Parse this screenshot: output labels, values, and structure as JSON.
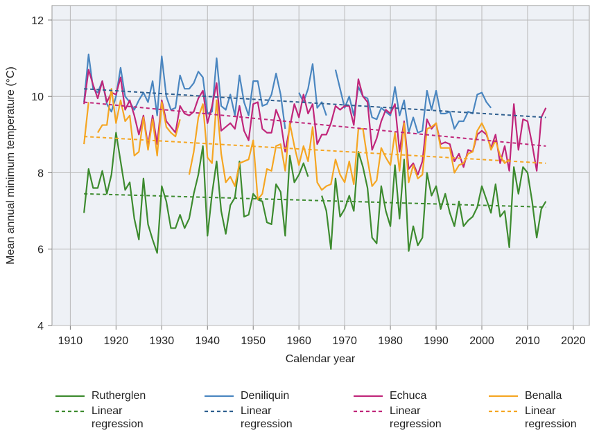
{
  "chart_data": {
    "type": "line",
    "xlabel": "Calendar year",
    "ylabel": "Mean annual minimum temperature (°C)",
    "xlim": [
      1906,
      2023.5
    ],
    "ylim": [
      4,
      12.38
    ],
    "xticks": [
      1910,
      1920,
      1930,
      1940,
      1950,
      1960,
      1970,
      1980,
      1990,
      2000,
      2010,
      2020
    ],
    "yticks": [
      4,
      6,
      8,
      10,
      12
    ],
    "grid": true,
    "x": [
      1913,
      1914,
      1915,
      1916,
      1917,
      1918,
      1919,
      1920,
      1921,
      1922,
      1923,
      1924,
      1925,
      1926,
      1927,
      1928,
      1929,
      1930,
      1931,
      1932,
      1933,
      1934,
      1935,
      1936,
      1937,
      1938,
      1939,
      1940,
      1941,
      1942,
      1943,
      1944,
      1945,
      1946,
      1947,
      1948,
      1949,
      1950,
      1951,
      1952,
      1953,
      1954,
      1955,
      1956,
      1957,
      1958,
      1959,
      1960,
      1961,
      1962,
      1963,
      1964,
      1965,
      1966,
      1967,
      1968,
      1969,
      1970,
      1971,
      1972,
      1973,
      1974,
      1975,
      1976,
      1977,
      1978,
      1979,
      1980,
      1981,
      1982,
      1983,
      1984,
      1985,
      1986,
      1987,
      1988,
      1989,
      1990,
      1991,
      1992,
      1993,
      1994,
      1995,
      1996,
      1997,
      1998,
      1999,
      2000,
      2001,
      2002,
      2003,
      2004,
      2005,
      2006,
      2007,
      2008,
      2009,
      2010,
      2011,
      2012,
      2013,
      2014
    ],
    "series": [
      {
        "name": "Rutherglen",
        "color": "#3d8b2f",
        "values": [
          6.95,
          8.1,
          7.6,
          7.6,
          8.05,
          7.45,
          7.95,
          9.05,
          8.3,
          7.55,
          7.75,
          6.8,
          6.25,
          7.85,
          6.65,
          6.25,
          5.9,
          7.65,
          7.25,
          6.55,
          6.55,
          6.9,
          6.55,
          6.8,
          7.45,
          7.95,
          8.7,
          6.35,
          7.45,
          8.3,
          7.0,
          6.4,
          7.15,
          7.35,
          8.3,
          6.85,
          6.9,
          7.45,
          7.3,
          7.25,
          6.7,
          6.65,
          7.7,
          7.5,
          6.35,
          8.45,
          7.75,
          7.95,
          8.25,
          7.9,
          null,
          null,
          7.4,
          7.0,
          6.0,
          7.85,
          6.85,
          7.05,
          7.4,
          7.0,
          8.55,
          8.15,
          7.6,
          6.3,
          6.15,
          7.65,
          7.0,
          6.6,
          8.2,
          6.8,
          8.35,
          5.95,
          6.6,
          6.1,
          6.3,
          8.0,
          7.4,
          7.65,
          7.05,
          7.45,
          6.95,
          6.6,
          7.25,
          6.6,
          6.75,
          6.85,
          7.1,
          7.65,
          7.3,
          6.95,
          7.7,
          6.85,
          7.0,
          6.05,
          8.15,
          7.45,
          8.15,
          8.0,
          7.25,
          6.3,
          7.05,
          7.25
        ]
      },
      {
        "name": "Linear regression",
        "color": "#3d8b2f",
        "dash": true,
        "x": [
          1913,
          2014
        ],
        "values": [
          7.45,
          7.1
        ]
      },
      {
        "name": "Deniliquin",
        "color": "#4a86c0",
        "values": [
          9.85,
          11.1,
          10.2,
          10.1,
          10.4,
          9.8,
          9.6,
          10.0,
          10.75,
          10.0,
          9.85,
          9.65,
          9.9,
          10.1,
          9.85,
          10.4,
          9.5,
          11.05,
          10.0,
          9.65,
          9.7,
          10.55,
          10.2,
          10.2,
          10.35,
          10.65,
          10.5,
          9.55,
          9.6,
          11.0,
          9.75,
          9.65,
          10.05,
          9.5,
          10.55,
          9.85,
          9.5,
          10.4,
          10.4,
          9.75,
          9.8,
          10.05,
          10.6,
          10.05,
          9.15,
          null,
          null,
          10.1,
          9.85,
          10.2,
          10.85,
          9.7,
          9.85,
          9.5,
          null,
          10.7,
          10.2,
          9.7,
          10.0,
          9.5,
          10.25,
          10.0,
          9.95,
          9.45,
          9.4,
          9.7,
          9.6,
          9.5,
          10.25,
          9.5,
          9.9,
          9.05,
          9.45,
          9.05,
          9.1,
          10.15,
          9.65,
          10.15,
          9.55,
          9.55,
          9.6,
          9.15,
          9.35,
          9.35,
          9.6,
          9.55,
          10.05,
          10.1,
          9.85,
          9.7,
          null,
          null,
          null,
          null,
          null,
          null,
          null,
          null,
          null,
          null,
          null,
          null
        ]
      },
      {
        "name": "Linear regression",
        "color": "#2f5f8f",
        "dash": true,
        "x": [
          1913,
          2014
        ],
        "values": [
          10.2,
          9.45
        ]
      },
      {
        "name": "Echuca",
        "color": "#c0267a",
        "values": [
          9.8,
          10.7,
          10.3,
          9.95,
          10.4,
          9.85,
          10.1,
          10.05,
          10.5,
          9.65,
          9.9,
          9.5,
          9.0,
          9.5,
          8.7,
          9.5,
          8.75,
          9.9,
          9.35,
          9.2,
          9.05,
          9.75,
          9.55,
          9.5,
          9.6,
          9.95,
          10.15,
          9.3,
          9.75,
          10.35,
          9.1,
          9.2,
          9.3,
          9.15,
          9.75,
          9.1,
          8.85,
          9.8,
          9.85,
          9.15,
          9.05,
          9.05,
          9.65,
          9.35,
          8.55,
          9.2,
          9.8,
          9.45,
          10.05,
          9.55,
          9.8,
          8.75,
          9.0,
          9.0,
          9.3,
          9.75,
          9.65,
          9.75,
          9.75,
          9.25,
          10.45,
          10.0,
          9.85,
          8.6,
          8.9,
          9.35,
          9.65,
          9.55,
          9.8,
          8.55,
          9.35,
          8.1,
          8.25,
          7.95,
          8.3,
          9.4,
          9.15,
          9.3,
          8.75,
          8.8,
          8.75,
          8.3,
          8.5,
          8.15,
          8.6,
          8.55,
          9.0,
          9.1,
          9.0,
          8.65,
          9.0,
          8.25,
          8.7,
          8.05,
          9.8,
          8.6,
          9.4,
          9.35,
          8.75,
          8.05,
          9.45,
          9.7
        ]
      },
      {
        "name": "Linear regression",
        "color": "#c0267a",
        "dash": true,
        "x": [
          1913,
          2014
        ],
        "values": [
          9.85,
          8.7
        ]
      },
      {
        "name": "Benalla",
        "color": "#f5a623",
        "values": [
          8.75,
          9.85,
          null,
          9.05,
          9.25,
          9.25,
          10.2,
          9.3,
          9.9,
          9.35,
          9.5,
          8.45,
          8.55,
          9.45,
          8.6,
          9.4,
          8.45,
          9.85,
          9.2,
          9.05,
          8.95,
          9.4,
          null,
          7.95,
          8.55,
          9.45,
          9.8,
          8.4,
          8.25,
          9.9,
          8.5,
          7.75,
          7.9,
          7.65,
          8.25,
          8.3,
          8.35,
          8.85,
          7.3,
          7.45,
          8.1,
          8.05,
          8.7,
          8.75,
          8.05,
          9.3,
          8.7,
          8.2,
          8.7,
          8.3,
          9.2,
          7.75,
          7.55,
          7.65,
          7.7,
          8.35,
          7.95,
          7.75,
          8.3,
          7.7,
          9.15,
          9.15,
          8.35,
          7.65,
          7.8,
          8.65,
          8.4,
          8.2,
          9.05,
          8.05,
          9.3,
          7.75,
          8.2,
          7.85,
          7.95,
          9.15,
          9.2,
          9.3,
          8.65,
          8.65,
          8.65,
          8.0,
          8.2,
          8.25,
          8.5,
          8.55,
          9.1,
          9.3,
          9.05,
          8.6,
          8.85,
          8.45,
          8.25,
          8.35,
          null,
          null,
          null,
          null,
          null,
          null,
          null,
          null
        ]
      },
      {
        "name": "Linear regression",
        "color": "#f5a623",
        "dash": true,
        "x": [
          1913,
          2014
        ],
        "values": [
          8.95,
          8.25
        ]
      }
    ]
  }
}
